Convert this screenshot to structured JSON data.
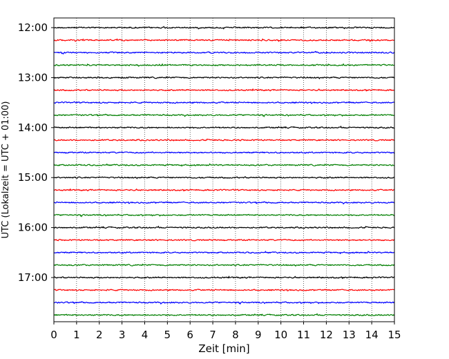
{
  "chart_data": {
    "type": "line",
    "xlabel": "Zeit  [min]",
    "ylabel": "UTC (Lokalzeit = UTC + 01:00)",
    "xlim": [
      0,
      15
    ],
    "x_ticks": [
      "0",
      "1",
      "2",
      "3",
      "4",
      "5",
      "6",
      "7",
      "8",
      "9",
      "10",
      "11",
      "12",
      "13",
      "14",
      "15"
    ],
    "y_tick_labels": [
      "12:00",
      "13:00",
      "14:00",
      "15:00",
      "16:00",
      "17:00"
    ],
    "trace_interval_minutes": 15,
    "first_trace": "12:00",
    "trace_count": 24,
    "colors": [
      "#000000",
      "#ff0000",
      "#0000ff",
      "#007f00"
    ],
    "grid_x": "dotted vertical lines at each minute",
    "legend": "none"
  }
}
